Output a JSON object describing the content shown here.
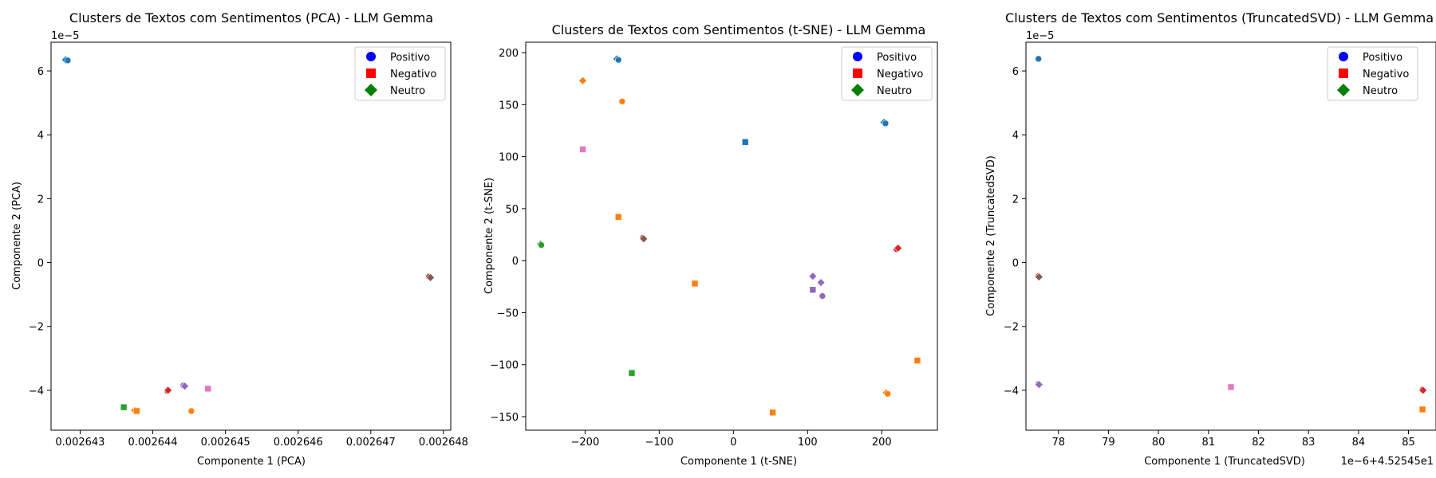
{
  "colors": {
    "positivo": "#0000ff",
    "negativo": "#ff0000",
    "neutro": "#008000",
    "clusters": [
      "#1f77b4",
      "#ff7f0e",
      "#2ca02c",
      "#d62728",
      "#9467bd",
      "#8c564b",
      "#e377c2"
    ]
  },
  "chart_data": [
    {
      "type": "scatter",
      "title": "Clusters de Textos com Sentimentos (PCA) - LLM Gemma",
      "xlabel": "Componente 1 (PCA)",
      "ylabel": "Componente 2 (PCA)",
      "x_multiplier_label": "",
      "y_multiplier_label": "1e−5",
      "xlim": [
        0.0026426,
        0.0026481
      ],
      "ylim": [
        -5.25,
        6.9
      ],
      "xticks": [
        0.002643,
        0.002644,
        0.002645,
        0.002646,
        0.002647,
        0.002648
      ],
      "xticklabels": [
        "0.002643",
        "0.002644",
        "0.002645",
        "0.002646",
        "0.002647",
        "0.002648"
      ],
      "yticks": [
        -4,
        -2,
        0,
        2,
        4,
        6
      ],
      "yticklabels": [
        "−4",
        "−2",
        "0",
        "2",
        "4",
        "6"
      ],
      "legend": {
        "placement": "top-right",
        "entries": [
          {
            "label": "Positivo",
            "marker": "circle",
            "color": "#0000ff"
          },
          {
            "label": "Negativo",
            "marker": "square",
            "color": "#ff0000"
          },
          {
            "label": "Neutro",
            "marker": "diamond",
            "color": "#008000"
          }
        ]
      },
      "points": [
        {
          "x": 0.0026428,
          "y": 6.35,
          "cluster": 0,
          "marker": "diamond"
        },
        {
          "x": 0.00264283,
          "y": 6.33,
          "cluster": 0,
          "marker": "circle"
        },
        {
          "x": 0.0026478,
          "y": -0.44,
          "cluster": 5,
          "marker": "circle"
        },
        {
          "x": 0.00264782,
          "y": -0.47,
          "cluster": 5,
          "marker": "diamond"
        },
        {
          "x": 0.0026436,
          "y": -4.53,
          "cluster": 2,
          "marker": "square"
        },
        {
          "x": 0.00264375,
          "y": -4.63,
          "cluster": 1,
          "marker": "diamond"
        },
        {
          "x": 0.00264378,
          "y": -4.65,
          "cluster": 1,
          "marker": "square"
        },
        {
          "x": 0.0026442,
          "y": -4.02,
          "cluster": 3,
          "marker": "circle"
        },
        {
          "x": 0.00264421,
          "y": -4.0,
          "cluster": 3,
          "marker": "diamond"
        },
        {
          "x": 0.00264442,
          "y": -3.85,
          "cluster": 4,
          "marker": "circle"
        },
        {
          "x": 0.00264444,
          "y": -3.87,
          "cluster": 4,
          "marker": "diamond"
        },
        {
          "x": 0.00264453,
          "y": -4.65,
          "cluster": 1,
          "marker": "circle"
        },
        {
          "x": 0.00264476,
          "y": -3.95,
          "cluster": 6,
          "marker": "square"
        }
      ]
    },
    {
      "type": "scatter",
      "title": "Clusters de Textos com Sentimentos (t-SNE) - LLM Gemma",
      "xlabel": "Componente 1 (t-SNE)",
      "ylabel": "Componente 2 (t-SNE)",
      "x_multiplier_label": "",
      "y_multiplier_label": "",
      "xlim": [
        -280,
        275
      ],
      "ylim": [
        -163,
        210
      ],
      "xticks": [
        -200,
        -100,
        0,
        100,
        200
      ],
      "xticklabels": [
        "−200",
        "−100",
        "0",
        "100",
        "200"
      ],
      "yticks": [
        -150,
        -100,
        -50,
        0,
        50,
        100,
        150,
        200
      ],
      "yticklabels": [
        "−150",
        "−100",
        "−50",
        "0",
        "50",
        "100",
        "150",
        "200"
      ],
      "legend": {
        "placement": "top-right",
        "entries": [
          {
            "label": "Positivo",
            "marker": "circle",
            "color": "#0000ff"
          },
          {
            "label": "Negativo",
            "marker": "square",
            "color": "#ff0000"
          },
          {
            "label": "Neutro",
            "marker": "diamond",
            "color": "#008000"
          }
        ]
      },
      "points": [
        {
          "x": -157,
          "y": 194,
          "cluster": 0,
          "marker": "diamond"
        },
        {
          "x": -155,
          "y": 193,
          "cluster": 0,
          "marker": "circle"
        },
        {
          "x": -203,
          "y": 173,
          "cluster": 1,
          "marker": "diamond"
        },
        {
          "x": -150,
          "y": 153,
          "cluster": 1,
          "marker": "circle"
        },
        {
          "x": -203,
          "y": 107,
          "cluster": 6,
          "marker": "square"
        },
        {
          "x": 16,
          "y": 114,
          "cluster": 0,
          "marker": "square"
        },
        {
          "x": 203,
          "y": 133,
          "cluster": 0,
          "marker": "diamond"
        },
        {
          "x": 205,
          "y": 132,
          "cluster": 0,
          "marker": "circle"
        },
        {
          "x": -155,
          "y": 42,
          "cluster": 1,
          "marker": "square"
        },
        {
          "x": -122,
          "y": 22,
          "cluster": 5,
          "marker": "circle"
        },
        {
          "x": -121,
          "y": 21,
          "cluster": 5,
          "marker": "diamond"
        },
        {
          "x": -260,
          "y": 16,
          "cluster": 2,
          "marker": "diamond"
        },
        {
          "x": -259,
          "y": 15,
          "cluster": 2,
          "marker": "circle"
        },
        {
          "x": 220,
          "y": 11,
          "cluster": 3,
          "marker": "circle"
        },
        {
          "x": 222,
          "y": 12,
          "cluster": 3,
          "marker": "diamond"
        },
        {
          "x": -52,
          "y": -22,
          "cluster": 1,
          "marker": "square"
        },
        {
          "x": 107,
          "y": -15,
          "cluster": 4,
          "marker": "diamond"
        },
        {
          "x": 118,
          "y": -21,
          "cluster": 4,
          "marker": "diamond"
        },
        {
          "x": 107,
          "y": -28,
          "cluster": 4,
          "marker": "square"
        },
        {
          "x": 120,
          "y": -34,
          "cluster": 4,
          "marker": "circle"
        },
        {
          "x": -137,
          "y": -108,
          "cluster": 2,
          "marker": "square"
        },
        {
          "x": 248,
          "y": -96,
          "cluster": 1,
          "marker": "square"
        },
        {
          "x": 206,
          "y": -127,
          "cluster": 1,
          "marker": "diamond"
        },
        {
          "x": 208,
          "y": -128,
          "cluster": 1,
          "marker": "circle"
        },
        {
          "x": 53,
          "y": -146,
          "cluster": 1,
          "marker": "square"
        }
      ]
    },
    {
      "type": "scatter",
      "title": "Clusters de Textos com Sentimentos (TruncatedSVD) - LLM Gemma",
      "xlabel": "Componente 1 (TruncatedSVD)",
      "ylabel": "Componente 2 (TruncatedSVD)",
      "x_multiplier_label": "1e−6+4.52545e1",
      "y_multiplier_label": "1e−5",
      "xlim": [
        77.35,
        85.55
      ],
      "ylim": [
        -5.25,
        6.9
      ],
      "xticks": [
        78,
        79,
        80,
        81,
        82,
        83,
        84,
        85
      ],
      "xticklabels": [
        "78",
        "79",
        "80",
        "81",
        "82",
        "83",
        "84",
        "85"
      ],
      "yticks": [
        -4,
        -2,
        0,
        2,
        4,
        6
      ],
      "yticklabels": [
        "−4",
        "−2",
        "0",
        "2",
        "4",
        "6"
      ],
      "legend": {
        "placement": "top-right",
        "entries": [
          {
            "label": "Positivo",
            "marker": "circle",
            "color": "#0000ff"
          },
          {
            "label": "Negativo",
            "marker": "square",
            "color": "#ff0000"
          },
          {
            "label": "Neutro",
            "marker": "diamond",
            "color": "#008000"
          }
        ]
      },
      "points": [
        {
          "x": 77.6,
          "y": 6.38,
          "cluster": 0,
          "marker": "circle"
        },
        {
          "x": 77.6,
          "y": -0.42,
          "cluster": 5,
          "marker": "circle"
        },
        {
          "x": 77.61,
          "y": -0.45,
          "cluster": 5,
          "marker": "diamond"
        },
        {
          "x": 77.6,
          "y": -3.8,
          "cluster": 4,
          "marker": "circle"
        },
        {
          "x": 77.61,
          "y": -3.82,
          "cluster": 4,
          "marker": "diamond"
        },
        {
          "x": 81.45,
          "y": -3.9,
          "cluster": 6,
          "marker": "square"
        },
        {
          "x": 85.28,
          "y": -3.98,
          "cluster": 3,
          "marker": "circle"
        },
        {
          "x": 85.29,
          "y": -4.0,
          "cluster": 3,
          "marker": "diamond"
        },
        {
          "x": 85.28,
          "y": -4.6,
          "cluster": 1,
          "marker": "square"
        }
      ]
    }
  ]
}
